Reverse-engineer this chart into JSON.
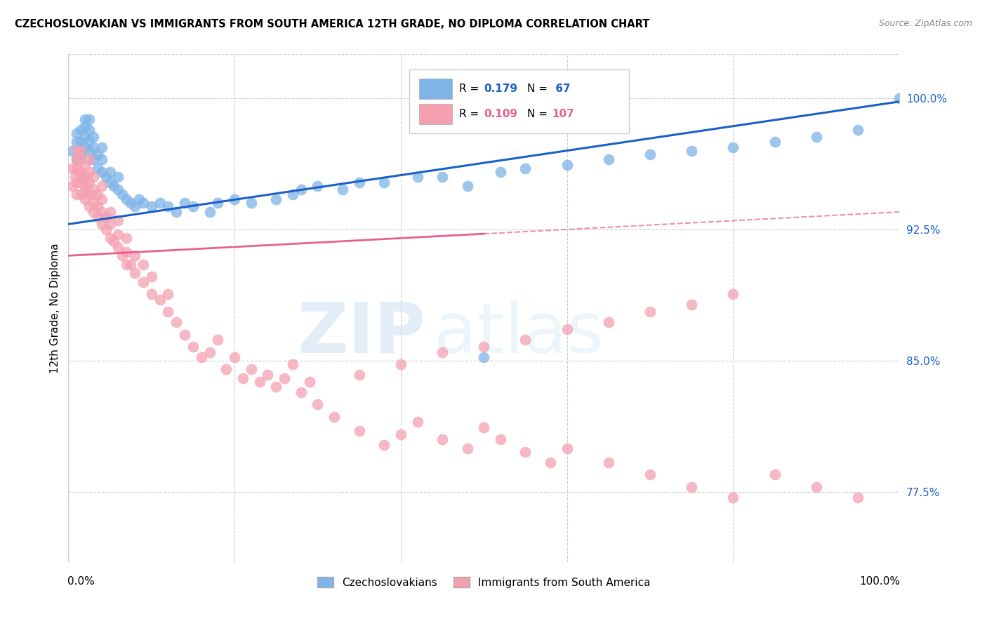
{
  "title": "CZECHOSLOVAKIAN VS IMMIGRANTS FROM SOUTH AMERICA 12TH GRADE, NO DIPLOMA CORRELATION CHART",
  "source": "Source: ZipAtlas.com",
  "ylabel": "12th Grade, No Diploma",
  "xlim": [
    0.0,
    1.0
  ],
  "ylim": [
    0.735,
    1.025
  ],
  "legend_blue_r": "0.179",
  "legend_blue_n": " 67",
  "legend_pink_r": "0.109",
  "legend_pink_n": "107",
  "legend_label_blue": "Czechoslovakians",
  "legend_label_pink": "Immigrants from South America",
  "blue_color": "#7EB4E8",
  "pink_color": "#F4A0B0",
  "trendline_blue_color": "#1B60C8",
  "trendline_pink_color": "#E8608A",
  "watermark_zip": "ZIP",
  "watermark_atlas": "atlas",
  "blue_x": [
    0.005,
    0.01,
    0.01,
    0.01,
    0.015,
    0.015,
    0.015,
    0.02,
    0.02,
    0.02,
    0.02,
    0.025,
    0.025,
    0.025,
    0.025,
    0.03,
    0.03,
    0.03,
    0.035,
    0.035,
    0.04,
    0.04,
    0.04,
    0.045,
    0.05,
    0.05,
    0.055,
    0.06,
    0.06,
    0.065,
    0.07,
    0.075,
    0.08,
    0.085,
    0.09,
    0.1,
    0.11,
    0.12,
    0.13,
    0.14,
    0.15,
    0.17,
    0.18,
    0.2,
    0.22,
    0.25,
    0.27,
    0.3,
    0.33,
    0.38,
    0.42,
    0.48,
    0.5,
    0.55,
    0.6,
    0.65,
    0.7,
    0.75,
    0.8,
    0.85,
    0.9,
    0.95,
    1.0,
    0.52,
    0.45,
    0.35,
    0.28
  ],
  "blue_y": [
    0.97,
    0.965,
    0.975,
    0.98,
    0.968,
    0.975,
    0.982,
    0.972,
    0.978,
    0.984,
    0.988,
    0.97,
    0.976,
    0.982,
    0.988,
    0.965,
    0.972,
    0.978,
    0.96,
    0.968,
    0.958,
    0.965,
    0.972,
    0.955,
    0.952,
    0.958,
    0.95,
    0.948,
    0.955,
    0.945,
    0.942,
    0.94,
    0.938,
    0.942,
    0.94,
    0.938,
    0.94,
    0.938,
    0.935,
    0.94,
    0.938,
    0.935,
    0.94,
    0.942,
    0.94,
    0.942,
    0.945,
    0.95,
    0.948,
    0.952,
    0.955,
    0.95,
    0.852,
    0.96,
    0.962,
    0.965,
    0.968,
    0.97,
    0.972,
    0.975,
    0.978,
    0.982,
    1.0,
    0.958,
    0.955,
    0.952,
    0.948
  ],
  "pink_x": [
    0.005,
    0.005,
    0.008,
    0.01,
    0.01,
    0.01,
    0.01,
    0.01,
    0.012,
    0.015,
    0.015,
    0.015,
    0.015,
    0.015,
    0.018,
    0.02,
    0.02,
    0.02,
    0.02,
    0.022,
    0.025,
    0.025,
    0.025,
    0.025,
    0.025,
    0.028,
    0.03,
    0.03,
    0.03,
    0.03,
    0.035,
    0.035,
    0.035,
    0.04,
    0.04,
    0.04,
    0.04,
    0.045,
    0.045,
    0.05,
    0.05,
    0.05,
    0.055,
    0.06,
    0.06,
    0.06,
    0.065,
    0.07,
    0.07,
    0.07,
    0.075,
    0.08,
    0.08,
    0.09,
    0.09,
    0.1,
    0.1,
    0.11,
    0.12,
    0.12,
    0.13,
    0.14,
    0.15,
    0.16,
    0.17,
    0.18,
    0.19,
    0.2,
    0.21,
    0.22,
    0.23,
    0.24,
    0.25,
    0.26,
    0.27,
    0.28,
    0.29,
    0.3,
    0.32,
    0.35,
    0.38,
    0.4,
    0.42,
    0.45,
    0.48,
    0.5,
    0.52,
    0.55,
    0.58,
    0.6,
    0.65,
    0.7,
    0.75,
    0.8,
    0.35,
    0.4,
    0.45,
    0.5,
    0.55,
    0.6,
    0.65,
    0.7,
    0.75,
    0.8,
    0.85,
    0.9,
    0.95
  ],
  "pink_y": [
    0.95,
    0.96,
    0.955,
    0.945,
    0.952,
    0.96,
    0.965,
    0.97,
    0.958,
    0.945,
    0.952,
    0.958,
    0.965,
    0.97,
    0.955,
    0.942,
    0.948,
    0.955,
    0.962,
    0.95,
    0.938,
    0.945,
    0.952,
    0.958,
    0.965,
    0.945,
    0.935,
    0.94,
    0.948,
    0.955,
    0.932,
    0.938,
    0.945,
    0.928,
    0.935,
    0.942,
    0.95,
    0.925,
    0.932,
    0.92,
    0.928,
    0.935,
    0.918,
    0.915,
    0.922,
    0.93,
    0.91,
    0.905,
    0.912,
    0.92,
    0.905,
    0.9,
    0.91,
    0.895,
    0.905,
    0.888,
    0.898,
    0.885,
    0.878,
    0.888,
    0.872,
    0.865,
    0.858,
    0.852,
    0.855,
    0.862,
    0.845,
    0.852,
    0.84,
    0.845,
    0.838,
    0.842,
    0.835,
    0.84,
    0.848,
    0.832,
    0.838,
    0.825,
    0.818,
    0.81,
    0.802,
    0.808,
    0.815,
    0.805,
    0.8,
    0.812,
    0.805,
    0.798,
    0.792,
    0.8,
    0.792,
    0.785,
    0.778,
    0.772,
    0.842,
    0.848,
    0.855,
    0.858,
    0.862,
    0.868,
    0.872,
    0.878,
    0.882,
    0.888,
    0.785,
    0.778,
    0.772
  ]
}
